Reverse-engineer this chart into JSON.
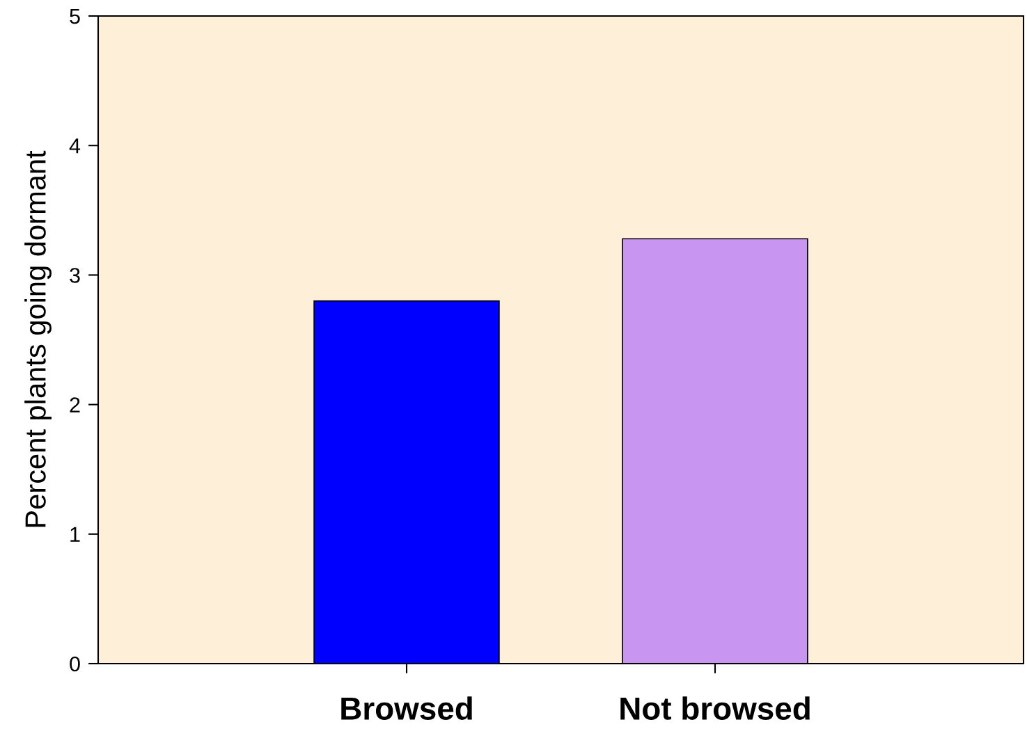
{
  "chart_data": {
    "type": "bar",
    "ylabel": "Percent plants going dormant",
    "categories": [
      "Browsed",
      "Not browsed"
    ],
    "values": [
      2.8,
      3.28
    ],
    "colors": [
      "#0000ff",
      "#c896f0"
    ],
    "ylim": [
      0,
      5
    ],
    "yticks": [
      0,
      1,
      2,
      3,
      4,
      5
    ],
    "grid": false,
    "legend": false
  }
}
